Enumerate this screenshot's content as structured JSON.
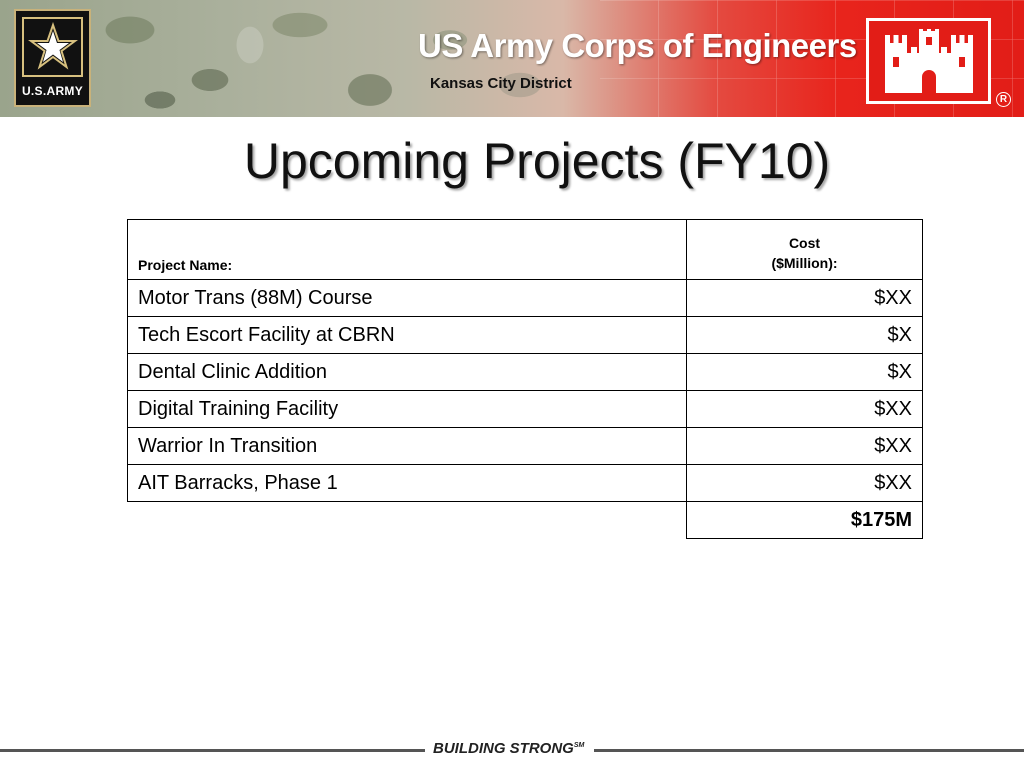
{
  "header": {
    "army_logo_text": "U.S.ARMY",
    "org_title": "US Army Corps of Engineers",
    "district": "Kansas City District",
    "reg_mark": "R",
    "colors": {
      "banner_red": "#e21d17",
      "camo": "#8a927a",
      "logo_gold": "#d7c07f"
    }
  },
  "slide": {
    "title": "Upcoming Projects (FY10)"
  },
  "table": {
    "header_name": "Project Name:",
    "header_cost_line1": "Cost",
    "header_cost_line2": "($Million):",
    "rows": [
      {
        "name": "Motor Trans (88M) Course",
        "cost": "$XX"
      },
      {
        "name": "Tech Escort Facility at CBRN",
        "cost": "$X"
      },
      {
        "name": "Dental Clinic Addition",
        "cost": "$X"
      },
      {
        "name": "Digital Training Facility",
        "cost": "$XX"
      },
      {
        "name": "Warrior In Transition",
        "cost": "$XX"
      },
      {
        "name": "AIT Barracks, Phase 1",
        "cost": "$XX"
      }
    ],
    "total": "$175M"
  },
  "footer": {
    "tagline": "BUILDING STRONG",
    "tagline_mark": "SM"
  }
}
